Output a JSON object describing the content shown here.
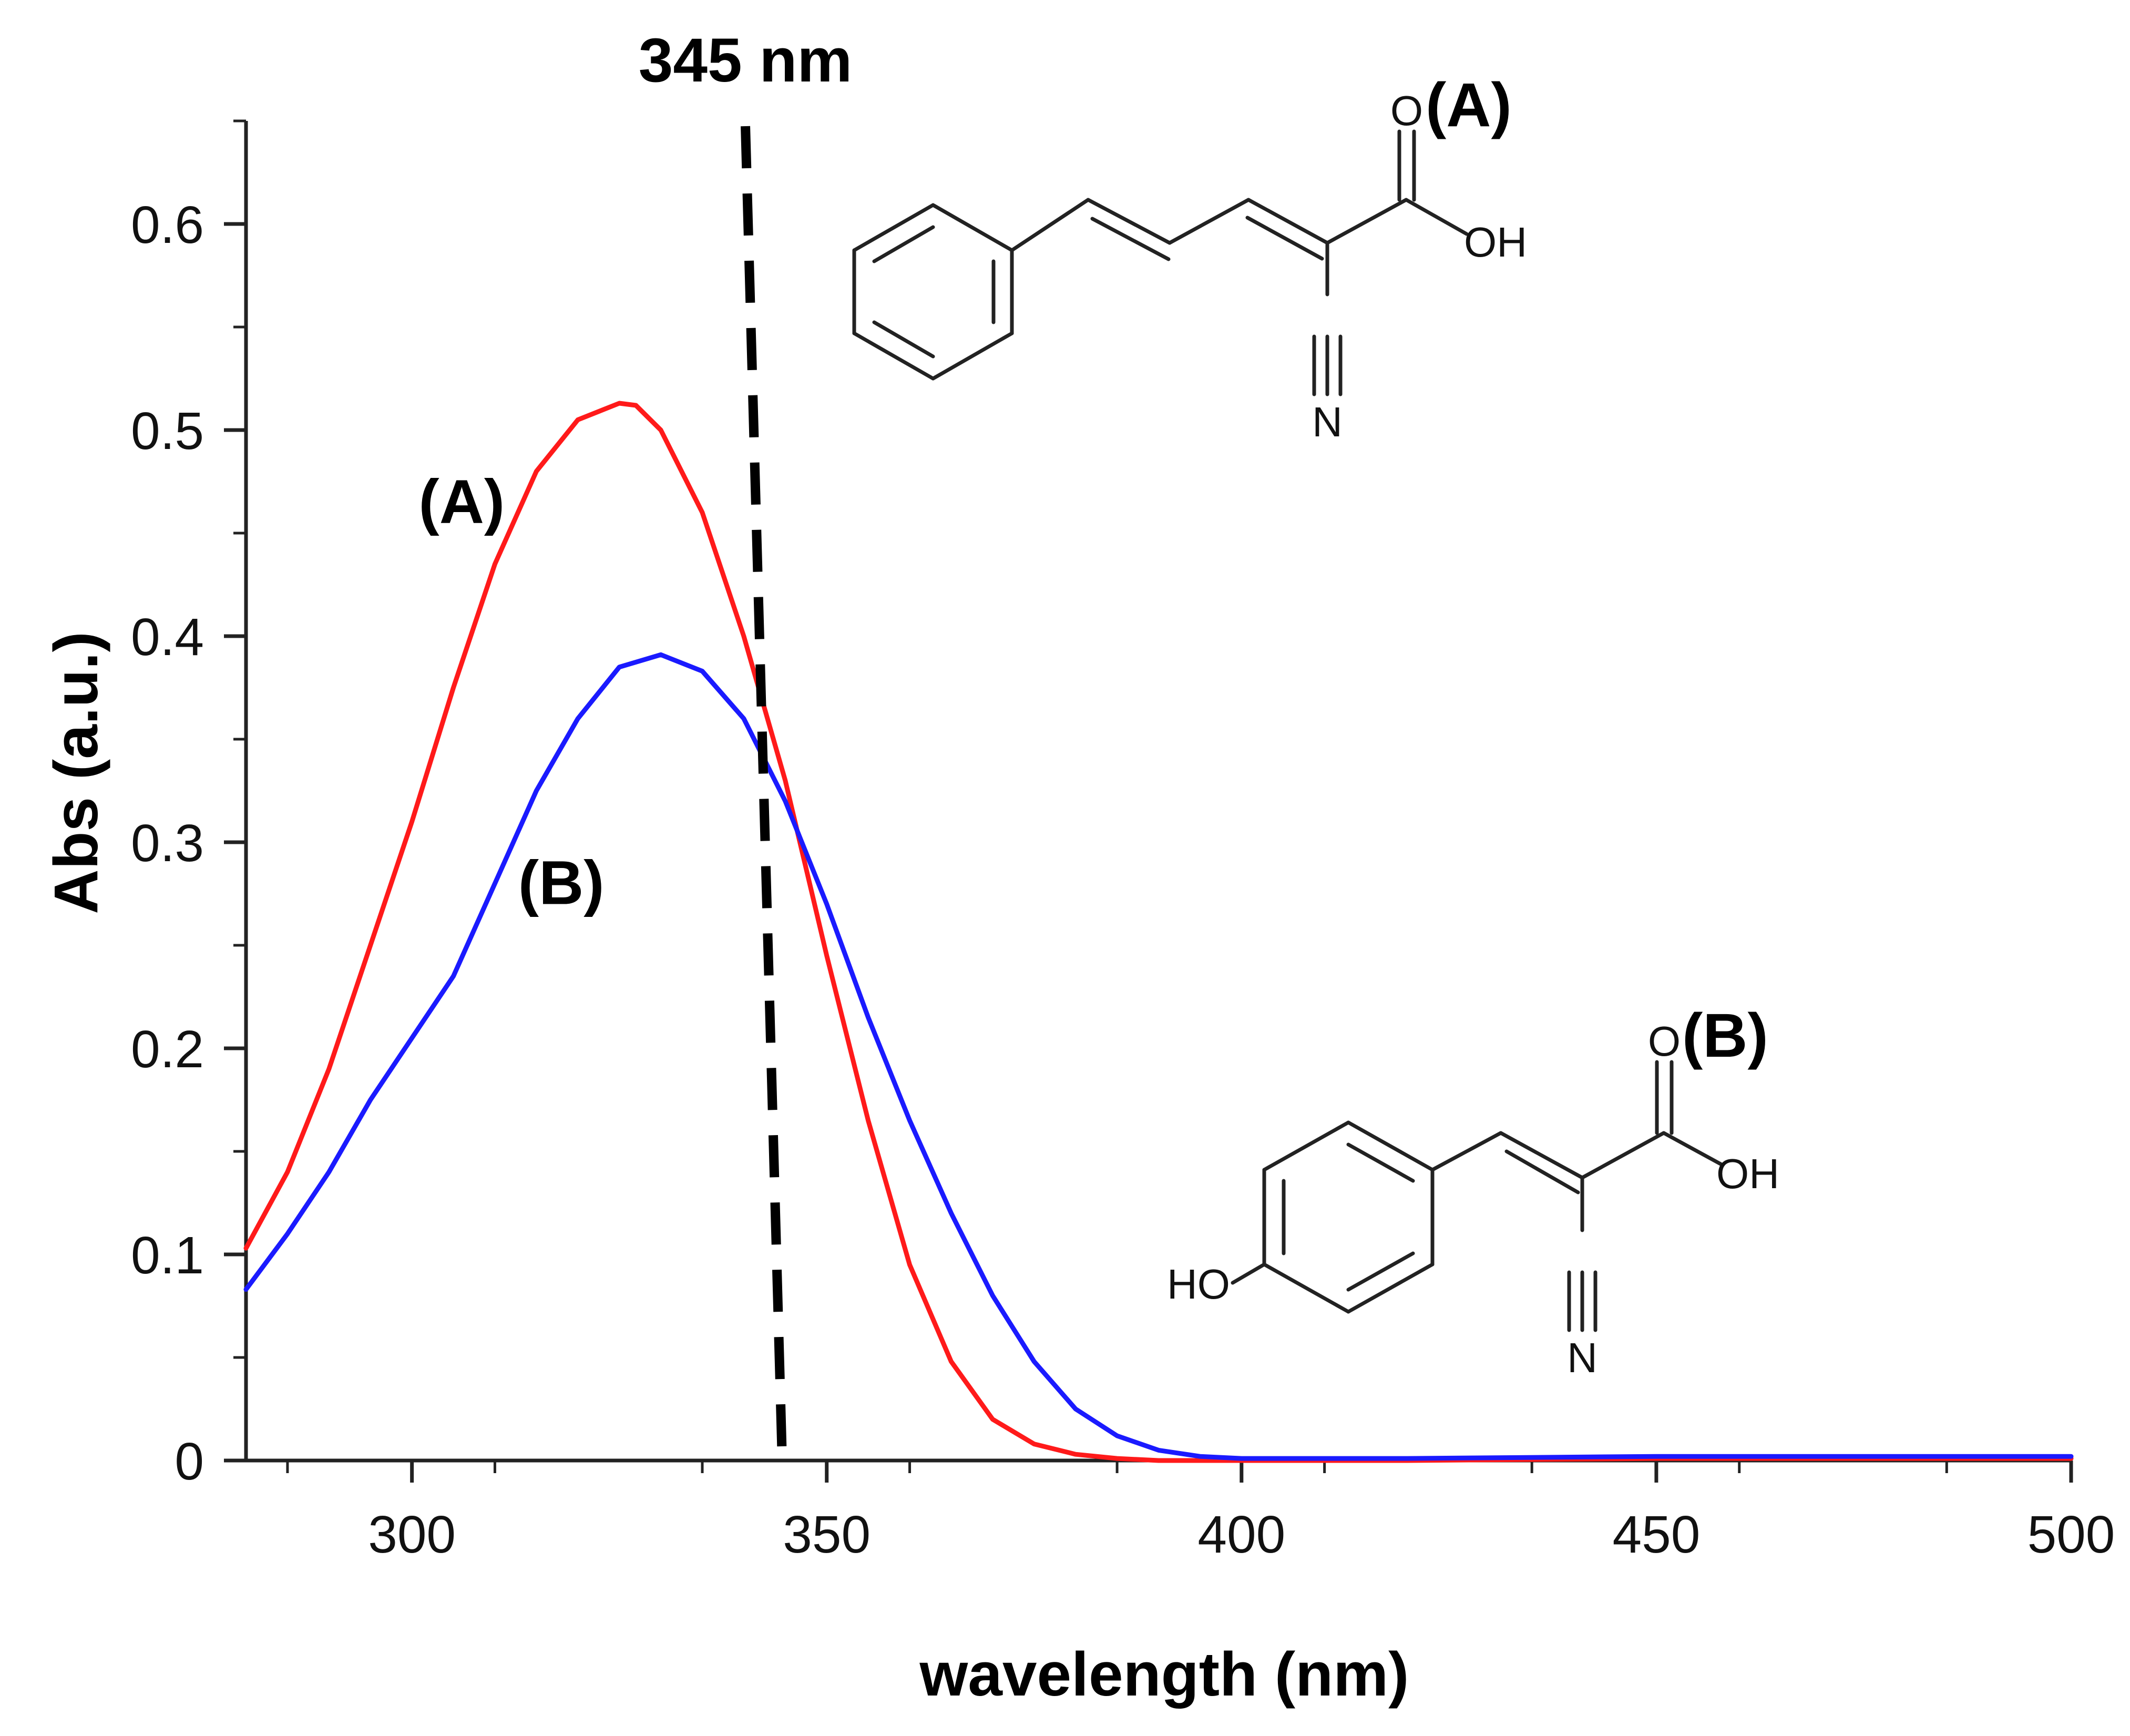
{
  "chart_data": {
    "type": "line",
    "title": "",
    "xlabel": "wavelength (nm)",
    "ylabel": "Abs (a.u.)",
    "xlim": [
      280,
      500
    ],
    "ylim": [
      0,
      0.65
    ],
    "x_ticks": [
      300,
      350,
      400,
      450,
      500
    ],
    "y_ticks": [
      0,
      0.1,
      0.2,
      0.3,
      0.4,
      0.5,
      0.6
    ],
    "x_tick_labels": [
      "300",
      "350",
      "400",
      "450",
      "500"
    ],
    "y_tick_labels": [
      "0",
      "0.1",
      "0.2",
      "0.3",
      "0.4",
      "0.5",
      "0.6"
    ],
    "grid": false,
    "series": [
      {
        "name": "(A)",
        "color": "#ff1a1a",
        "x": [
          280,
          285,
          290,
          295,
          300,
          305,
          310,
          315,
          320,
          325,
          327,
          330,
          335,
          340,
          345,
          350,
          355,
          360,
          365,
          370,
          375,
          380,
          385,
          390,
          400,
          420,
          450,
          480,
          500
        ],
        "y": [
          0.103,
          0.14,
          0.19,
          0.25,
          0.31,
          0.375,
          0.435,
          0.48,
          0.505,
          0.513,
          0.512,
          0.5,
          0.46,
          0.4,
          0.33,
          0.245,
          0.165,
          0.095,
          0.048,
          0.02,
          0.008,
          0.003,
          0.001,
          0.0,
          0.0,
          0.0,
          0.001,
          0.001,
          0.001
        ]
      },
      {
        "name": "(B)",
        "color": "#1a1aff",
        "x": [
          280,
          285,
          290,
          295,
          300,
          305,
          310,
          315,
          320,
          325,
          330,
          335,
          340,
          345,
          350,
          355,
          360,
          365,
          370,
          375,
          380,
          385,
          390,
          395,
          400,
          420,
          450,
          480,
          500
        ],
        "y": [
          0.083,
          0.11,
          0.14,
          0.175,
          0.205,
          0.235,
          0.28,
          0.325,
          0.36,
          0.385,
          0.391,
          0.383,
          0.36,
          0.32,
          0.27,
          0.215,
          0.165,
          0.12,
          0.08,
          0.048,
          0.025,
          0.012,
          0.005,
          0.002,
          0.001,
          0.001,
          0.002,
          0.002,
          0.002
        ]
      }
    ],
    "annotations": [
      {
        "text": "345 nm",
        "type": "dashed-vertical-line",
        "x": 344
      },
      {
        "text": "(A)",
        "target": "series A",
        "x": 306,
        "y": 0.455
      },
      {
        "text": "(B)",
        "target": "series B",
        "x": 318,
        "y": 0.27
      }
    ]
  },
  "structures": [
    {
      "label": "(A)",
      "atoms": [
        "O",
        "OH",
        "N"
      ]
    },
    {
      "label": "(B)",
      "atoms": [
        "O",
        "OH",
        "N",
        "HO"
      ]
    }
  ]
}
